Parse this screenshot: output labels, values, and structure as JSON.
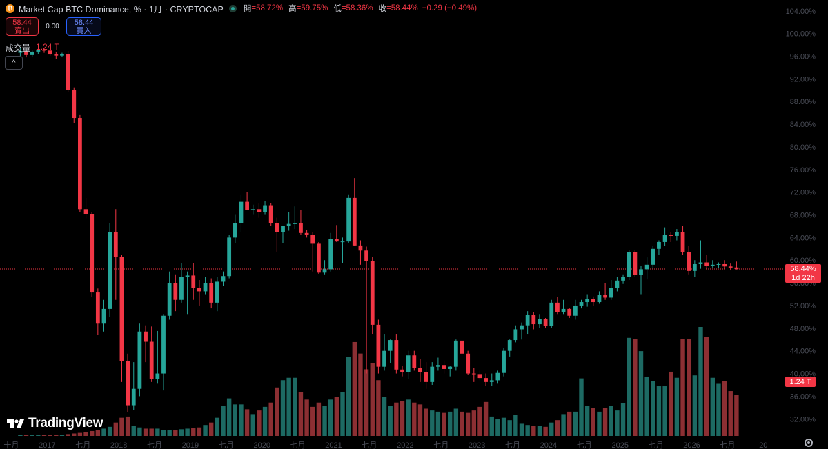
{
  "header": {
    "title": "Market Cap BTC Dominance, % · 1月 · CRYPTOCAP",
    "open_label": "開",
    "open_value": "=58.72%",
    "high_label": "高",
    "high_value": "=59.75%",
    "low_label": "低",
    "low_value": "=58.36%",
    "close_label": "收",
    "close_value": "=58.44%",
    "change": "−0.29 (−0.49%)"
  },
  "trade": {
    "sell_price": "58.44",
    "sell_label": "賣出",
    "spread": "0.00",
    "buy_price": "58.44",
    "buy_label": "買入"
  },
  "volume": {
    "label": "成交量",
    "value": "1.24 T"
  },
  "collapse_symbol": "^",
  "price_tag": {
    "price": "58.44%",
    "countdown": "1d 22h"
  },
  "volume_tag": "1.24 T",
  "logo_text": "TradingView",
  "colors": {
    "up": "#26a69a",
    "down": "#f23645",
    "up_volume": "#1d6a63",
    "down_volume": "#8c2f33",
    "background": "#000000"
  },
  "icons": {
    "coin": "bitcoin-icon",
    "status": "market-status-icon",
    "settings": "gear-icon"
  },
  "chart_data": {
    "type": "candlestick",
    "y_ticks": [
      "104.00%",
      "100.00%",
      "96.00%",
      "92.00%",
      "88.00%",
      "84.00%",
      "80.00%",
      "76.00%",
      "72.00%",
      "68.00%",
      "64.00%",
      "60.00%",
      "56.00%",
      "52.00%",
      "48.00%",
      "44.00%",
      "40.00%",
      "36.00%",
      "32.00%"
    ],
    "ylim": [
      30,
      106
    ],
    "x_ticks": [
      {
        "label": "十月",
        "index": -1.5
      },
      {
        "label": "2017",
        "index": 4.5
      },
      {
        "label": "七月",
        "index": 10.5
      },
      {
        "label": "2018",
        "index": 16.5
      },
      {
        "label": "七月",
        "index": 22.5
      },
      {
        "label": "2019",
        "index": 28.5
      },
      {
        "label": "七月",
        "index": 34.5
      },
      {
        "label": "2020",
        "index": 40.5
      },
      {
        "label": "七月",
        "index": 46.5
      },
      {
        "label": "2021",
        "index": 52.5
      },
      {
        "label": "七月",
        "index": 58.5
      },
      {
        "label": "2022",
        "index": 64.5
      },
      {
        "label": "七月",
        "index": 70.5
      },
      {
        "label": "2023",
        "index": 76.5
      },
      {
        "label": "七月",
        "index": 82.5
      },
      {
        "label": "2024",
        "index": 88.5
      },
      {
        "label": "七月",
        "index": 94.5
      },
      {
        "label": "2025",
        "index": 100.5
      },
      {
        "label": "七月",
        "index": 106.5
      },
      {
        "label": "2026",
        "index": 112.5
      },
      {
        "label": "七月",
        "index": 118.5
      },
      {
        "label": "20",
        "index": 124.5
      }
    ],
    "last_close": 58.44,
    "volume_max": 1.8,
    "candles": [
      {
        "o": 96.6,
        "h": 97.6,
        "l": 96.0,
        "c": 96.9,
        "v": 0.01
      },
      {
        "o": 96.9,
        "h": 97.2,
        "l": 95.8,
        "c": 96.2,
        "v": 0.01
      },
      {
        "o": 96.2,
        "h": 97.0,
        "l": 95.9,
        "c": 96.8,
        "v": 0.01
      },
      {
        "o": 96.8,
        "h": 97.3,
        "l": 96.4,
        "c": 97.1,
        "v": 0.01
      },
      {
        "o": 97.1,
        "h": 97.5,
        "l": 96.6,
        "c": 97.0,
        "v": 0.01
      },
      {
        "o": 97.0,
        "h": 97.6,
        "l": 96.1,
        "c": 96.3,
        "v": 0.01
      },
      {
        "o": 96.3,
        "h": 96.8,
        "l": 95.5,
        "c": 96.1,
        "v": 0.01
      },
      {
        "o": 96.1,
        "h": 96.6,
        "l": 95.9,
        "c": 96.4,
        "v": 0.02
      },
      {
        "o": 96.4,
        "h": 96.9,
        "l": 89.6,
        "c": 90.0,
        "v": 0.03
      },
      {
        "o": 90.0,
        "h": 90.5,
        "l": 84.2,
        "c": 85.1,
        "v": 0.04
      },
      {
        "o": 85.1,
        "h": 85.6,
        "l": 68.5,
        "c": 69.0,
        "v": 0.05
      },
      {
        "o": 69.0,
        "h": 71.0,
        "l": 67.4,
        "c": 68.1,
        "v": 0.06
      },
      {
        "o": 68.1,
        "h": 68.5,
        "l": 53.5,
        "c": 54.3,
        "v": 0.08
      },
      {
        "o": 54.3,
        "h": 55.0,
        "l": 46.8,
        "c": 48.8,
        "v": 0.1
      },
      {
        "o": 48.8,
        "h": 53.0,
        "l": 47.4,
        "c": 51.4,
        "v": 0.12
      },
      {
        "o": 51.4,
        "h": 66.5,
        "l": 50.0,
        "c": 65.0,
        "v": 0.15
      },
      {
        "o": 65.0,
        "h": 69.0,
        "l": 53.0,
        "c": 60.6,
        "v": 0.22
      },
      {
        "o": 60.6,
        "h": 61.0,
        "l": 38.5,
        "c": 42.2,
        "v": 0.3
      },
      {
        "o": 42.2,
        "h": 43.5,
        "l": 33.2,
        "c": 34.4,
        "v": 0.32
      },
      {
        "o": 34.4,
        "h": 42.0,
        "l": 33.5,
        "c": 37.3,
        "v": 0.16
      },
      {
        "o": 37.3,
        "h": 48.8,
        "l": 36.0,
        "c": 47.4,
        "v": 0.14
      },
      {
        "o": 47.4,
        "h": 48.5,
        "l": 42.0,
        "c": 45.6,
        "v": 0.12
      },
      {
        "o": 45.6,
        "h": 48.3,
        "l": 38.5,
        "c": 39.0,
        "v": 0.12
      },
      {
        "o": 39.0,
        "h": 47.5,
        "l": 38.2,
        "c": 40.0,
        "v": 0.12
      },
      {
        "o": 40.0,
        "h": 50.5,
        "l": 37.0,
        "c": 50.2,
        "v": 0.1
      },
      {
        "o": 50.2,
        "h": 58.0,
        "l": 49.5,
        "c": 56.0,
        "v": 0.1
      },
      {
        "o": 56.0,
        "h": 57.5,
        "l": 51.0,
        "c": 53.0,
        "v": 0.1
      },
      {
        "o": 53.0,
        "h": 59.5,
        "l": 52.5,
        "c": 57.0,
        "v": 0.11
      },
      {
        "o": 57.0,
        "h": 58.0,
        "l": 50.5,
        "c": 57.3,
        "v": 0.12
      },
      {
        "o": 57.3,
        "h": 59.5,
        "l": 53.0,
        "c": 55.1,
        "v": 0.13
      },
      {
        "o": 55.1,
        "h": 56.5,
        "l": 52.0,
        "c": 54.5,
        "v": 0.14
      },
      {
        "o": 54.5,
        "h": 57.0,
        "l": 54.0,
        "c": 56.0,
        "v": 0.18
      },
      {
        "o": 56.0,
        "h": 56.8,
        "l": 51.5,
        "c": 52.5,
        "v": 0.22
      },
      {
        "o": 52.5,
        "h": 57.0,
        "l": 51.0,
        "c": 56.2,
        "v": 0.3
      },
      {
        "o": 56.2,
        "h": 58.0,
        "l": 55.5,
        "c": 57.2,
        "v": 0.5
      },
      {
        "o": 57.2,
        "h": 64.5,
        "l": 56.8,
        "c": 64.0,
        "v": 0.62
      },
      {
        "o": 64.0,
        "h": 68.0,
        "l": 63.0,
        "c": 66.5,
        "v": 0.52
      },
      {
        "o": 66.5,
        "h": 71.5,
        "l": 65.0,
        "c": 70.3,
        "v": 0.52
      },
      {
        "o": 70.3,
        "h": 72.0,
        "l": 68.8,
        "c": 68.9,
        "v": 0.44
      },
      {
        "o": 68.9,
        "h": 69.8,
        "l": 68.0,
        "c": 69.0,
        "v": 0.36
      },
      {
        "o": 69.0,
        "h": 70.0,
        "l": 67.5,
        "c": 68.5,
        "v": 0.42
      },
      {
        "o": 68.5,
        "h": 70.5,
        "l": 68.0,
        "c": 69.7,
        "v": 0.48
      },
      {
        "o": 69.7,
        "h": 70.1,
        "l": 66.0,
        "c": 66.6,
        "v": 0.55
      },
      {
        "o": 66.6,
        "h": 67.5,
        "l": 61.5,
        "c": 65.0,
        "v": 0.8
      },
      {
        "o": 65.0,
        "h": 66.0,
        "l": 63.0,
        "c": 66.0,
        "v": 0.92
      },
      {
        "o": 66.0,
        "h": 68.5,
        "l": 65.2,
        "c": 66.4,
        "v": 0.96
      },
      {
        "o": 66.4,
        "h": 69.5,
        "l": 65.5,
        "c": 66.5,
        "v": 0.96
      },
      {
        "o": 66.5,
        "h": 68.8,
        "l": 64.5,
        "c": 64.8,
        "v": 0.72
      },
      {
        "o": 64.8,
        "h": 65.3,
        "l": 64.0,
        "c": 64.5,
        "v": 0.6
      },
      {
        "o": 64.5,
        "h": 65.0,
        "l": 58.0,
        "c": 62.9,
        "v": 0.48
      },
      {
        "o": 62.9,
        "h": 63.2,
        "l": 57.6,
        "c": 57.8,
        "v": 0.55
      },
      {
        "o": 57.8,
        "h": 60.0,
        "l": 57.5,
        "c": 58.4,
        "v": 0.5
      },
      {
        "o": 58.4,
        "h": 64.8,
        "l": 58.0,
        "c": 63.8,
        "v": 0.6
      },
      {
        "o": 63.8,
        "h": 66.2,
        "l": 63.2,
        "c": 63.3,
        "v": 0.64
      },
      {
        "o": 63.3,
        "h": 64.0,
        "l": 59.5,
        "c": 63.3,
        "v": 0.72
      },
      {
        "o": 63.3,
        "h": 71.5,
        "l": 63.0,
        "c": 71.0,
        "v": 1.3
      },
      {
        "o": 71.0,
        "h": 74.5,
        "l": 62.5,
        "c": 62.6,
        "v": 1.55
      },
      {
        "o": 62.6,
        "h": 63.5,
        "l": 59.2,
        "c": 61.7,
        "v": 1.36
      },
      {
        "o": 61.7,
        "h": 62.4,
        "l": 40.0,
        "c": 59.9,
        "v": 1.1
      },
      {
        "o": 59.9,
        "h": 60.6,
        "l": 47.0,
        "c": 48.6,
        "v": 1.2
      },
      {
        "o": 48.6,
        "h": 49.5,
        "l": 40.0,
        "c": 41.2,
        "v": 0.92
      },
      {
        "o": 41.2,
        "h": 47.0,
        "l": 40.5,
        "c": 44.0,
        "v": 0.64
      },
      {
        "o": 44.0,
        "h": 46.0,
        "l": 41.8,
        "c": 45.9,
        "v": 0.5
      },
      {
        "o": 45.9,
        "h": 47.0,
        "l": 40.0,
        "c": 40.7,
        "v": 0.55
      },
      {
        "o": 40.7,
        "h": 41.3,
        "l": 39.5,
        "c": 40.2,
        "v": 0.58
      },
      {
        "o": 40.2,
        "h": 44.0,
        "l": 39.0,
        "c": 43.2,
        "v": 0.6
      },
      {
        "o": 43.2,
        "h": 44.0,
        "l": 40.5,
        "c": 41.0,
        "v": 0.55
      },
      {
        "o": 41.0,
        "h": 42.5,
        "l": 38.5,
        "c": 40.3,
        "v": 0.52
      },
      {
        "o": 40.3,
        "h": 42.0,
        "l": 37.3,
        "c": 38.5,
        "v": 0.45
      },
      {
        "o": 38.5,
        "h": 42.0,
        "l": 38.0,
        "c": 41.2,
        "v": 0.42
      },
      {
        "o": 41.2,
        "h": 42.8,
        "l": 40.5,
        "c": 41.5,
        "v": 0.4
      },
      {
        "o": 41.5,
        "h": 42.3,
        "l": 40.0,
        "c": 40.8,
        "v": 0.38
      },
      {
        "o": 40.8,
        "h": 41.4,
        "l": 39.5,
        "c": 41.2,
        "v": 0.4
      },
      {
        "o": 41.2,
        "h": 46.0,
        "l": 40.5,
        "c": 45.8,
        "v": 0.45
      },
      {
        "o": 45.8,
        "h": 47.5,
        "l": 42.5,
        "c": 43.5,
        "v": 0.4
      },
      {
        "o": 43.5,
        "h": 44.0,
        "l": 39.8,
        "c": 40.0,
        "v": 0.38
      },
      {
        "o": 40.0,
        "h": 41.0,
        "l": 38.5,
        "c": 39.9,
        "v": 0.42
      },
      {
        "o": 39.9,
        "h": 40.5,
        "l": 38.8,
        "c": 39.2,
        "v": 0.48
      },
      {
        "o": 39.2,
        "h": 40.0,
        "l": 37.8,
        "c": 38.5,
        "v": 0.56
      },
      {
        "o": 38.5,
        "h": 40.0,
        "l": 37.8,
        "c": 38.8,
        "v": 0.32
      },
      {
        "o": 38.8,
        "h": 40.5,
        "l": 38.2,
        "c": 40.1,
        "v": 0.28
      },
      {
        "o": 40.1,
        "h": 44.5,
        "l": 39.5,
        "c": 44.0,
        "v": 0.3
      },
      {
        "o": 44.0,
        "h": 46.0,
        "l": 43.0,
        "c": 45.9,
        "v": 0.26
      },
      {
        "o": 45.9,
        "h": 48.5,
        "l": 45.5,
        "c": 47.8,
        "v": 0.35
      },
      {
        "o": 47.8,
        "h": 49.0,
        "l": 46.0,
        "c": 48.5,
        "v": 0.2
      },
      {
        "o": 48.5,
        "h": 51.0,
        "l": 47.0,
        "c": 50.3,
        "v": 0.18
      },
      {
        "o": 50.3,
        "h": 50.8,
        "l": 47.8,
        "c": 48.7,
        "v": 0.16
      },
      {
        "o": 48.7,
        "h": 50.5,
        "l": 48.0,
        "c": 49.6,
        "v": 0.16
      },
      {
        "o": 49.6,
        "h": 49.8,
        "l": 48.0,
        "c": 48.4,
        "v": 0.15
      },
      {
        "o": 48.4,
        "h": 53.0,
        "l": 48.0,
        "c": 52.5,
        "v": 0.22
      },
      {
        "o": 52.5,
        "h": 53.5,
        "l": 50.5,
        "c": 50.8,
        "v": 0.26
      },
      {
        "o": 50.8,
        "h": 53.0,
        "l": 50.5,
        "c": 51.4,
        "v": 0.36
      },
      {
        "o": 51.4,
        "h": 51.6,
        "l": 49.8,
        "c": 50.2,
        "v": 0.4
      },
      {
        "o": 50.2,
        "h": 53.0,
        "l": 49.5,
        "c": 52.0,
        "v": 0.4
      },
      {
        "o": 52.0,
        "h": 53.0,
        "l": 51.5,
        "c": 52.6,
        "v": 0.95
      },
      {
        "o": 52.6,
        "h": 54.0,
        "l": 51.8,
        "c": 53.2,
        "v": 0.5
      },
      {
        "o": 53.2,
        "h": 53.6,
        "l": 52.0,
        "c": 52.6,
        "v": 0.46
      },
      {
        "o": 52.6,
        "h": 54.5,
        "l": 52.3,
        "c": 53.9,
        "v": 0.4
      },
      {
        "o": 53.9,
        "h": 56.0,
        "l": 53.0,
        "c": 53.4,
        "v": 0.46
      },
      {
        "o": 53.4,
        "h": 56.5,
        "l": 53.0,
        "c": 55.1,
        "v": 0.5
      },
      {
        "o": 55.1,
        "h": 57.0,
        "l": 54.5,
        "c": 56.4,
        "v": 0.42
      },
      {
        "o": 56.4,
        "h": 57.5,
        "l": 55.8,
        "c": 57.0,
        "v": 0.54
      },
      {
        "o": 57.0,
        "h": 61.8,
        "l": 56.5,
        "c": 61.4,
        "v": 1.62
      },
      {
        "o": 61.4,
        "h": 61.8,
        "l": 57.0,
        "c": 57.4,
        "v": 1.6
      },
      {
        "o": 57.4,
        "h": 59.0,
        "l": 54.0,
        "c": 58.4,
        "v": 1.4
      },
      {
        "o": 58.4,
        "h": 60.5,
        "l": 56.6,
        "c": 59.2,
        "v": 0.98
      },
      {
        "o": 59.2,
        "h": 62.5,
        "l": 58.5,
        "c": 62.0,
        "v": 0.9
      },
      {
        "o": 62.0,
        "h": 63.5,
        "l": 61.0,
        "c": 63.2,
        "v": 0.82
      },
      {
        "o": 63.2,
        "h": 65.8,
        "l": 62.5,
        "c": 64.5,
        "v": 0.82
      },
      {
        "o": 64.5,
        "h": 65.0,
        "l": 63.2,
        "c": 64.3,
        "v": 1.06
      },
      {
        "o": 64.3,
        "h": 65.5,
        "l": 63.5,
        "c": 65.0,
        "v": 0.96
      },
      {
        "o": 65.0,
        "h": 66.0,
        "l": 61.0,
        "c": 61.4,
        "v": 1.6
      },
      {
        "o": 61.4,
        "h": 62.5,
        "l": 57.5,
        "c": 58.1,
        "v": 1.6
      },
      {
        "o": 58.1,
        "h": 60.0,
        "l": 57.0,
        "c": 59.3,
        "v": 1.0
      },
      {
        "o": 59.3,
        "h": 63.5,
        "l": 58.5,
        "c": 59.6,
        "v": 1.8
      },
      {
        "o": 59.6,
        "h": 61.0,
        "l": 58.5,
        "c": 59.0,
        "v": 1.64
      },
      {
        "o": 59.0,
        "h": 60.0,
        "l": 58.6,
        "c": 59.2,
        "v": 0.96
      },
      {
        "o": 59.2,
        "h": 59.6,
        "l": 58.6,
        "c": 59.3,
        "v": 0.86
      },
      {
        "o": 59.3,
        "h": 60.0,
        "l": 58.5,
        "c": 58.9,
        "v": 0.9
      },
      {
        "o": 58.9,
        "h": 59.4,
        "l": 58.2,
        "c": 58.7,
        "v": 0.74
      },
      {
        "o": 58.72,
        "h": 59.75,
        "l": 58.36,
        "c": 58.44,
        "v": 0.68
      }
    ]
  }
}
